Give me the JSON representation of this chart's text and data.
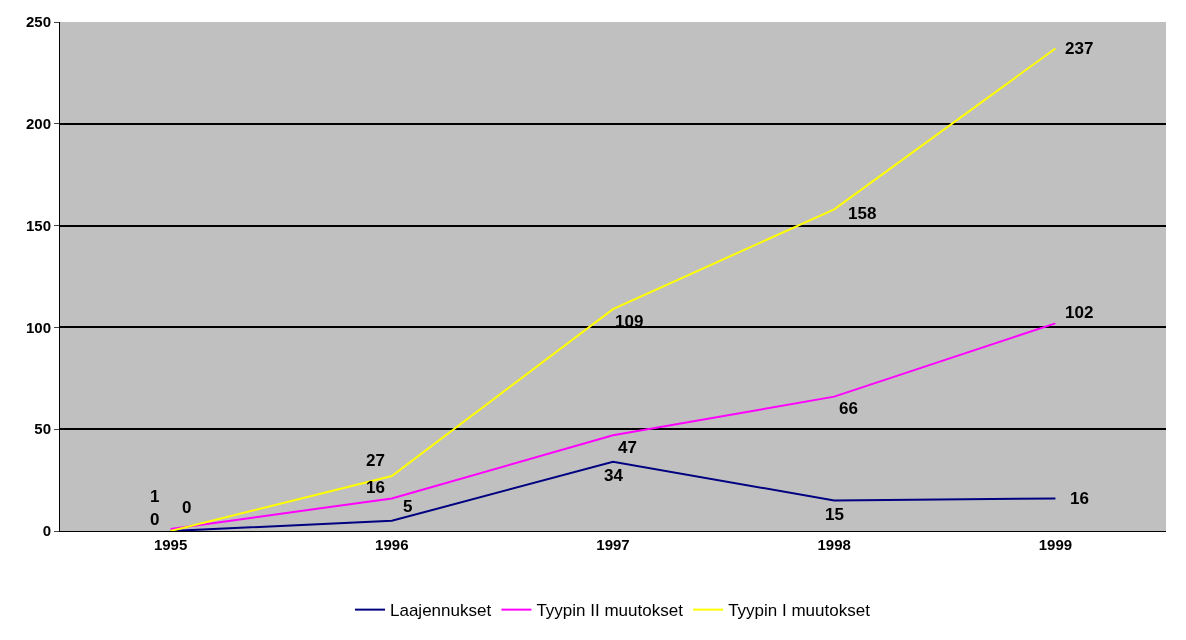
{
  "chart_data": {
    "type": "line",
    "categories": [
      "1995",
      "1996",
      "1997",
      "1998",
      "1999"
    ],
    "series": [
      {
        "name": "Laajennukset",
        "color": "#000080",
        "values": [
          0,
          5,
          34,
          15,
          16
        ]
      },
      {
        "name": "Tyypin II muutokset",
        "color": "#ff00ff",
        "values": [
          1,
          16,
          47,
          66,
          102
        ]
      },
      {
        "name": "Tyypin I muutokset",
        "color": "#ffff00",
        "values": [
          0,
          27,
          109,
          158,
          237
        ]
      }
    ],
    "ylim": [
      0,
      250
    ],
    "yticks": [
      0,
      50,
      100,
      150,
      200,
      250
    ],
    "grid": "y",
    "legend": "bottom",
    "data_labels": true,
    "marker": "none",
    "line_style": "solid"
  }
}
